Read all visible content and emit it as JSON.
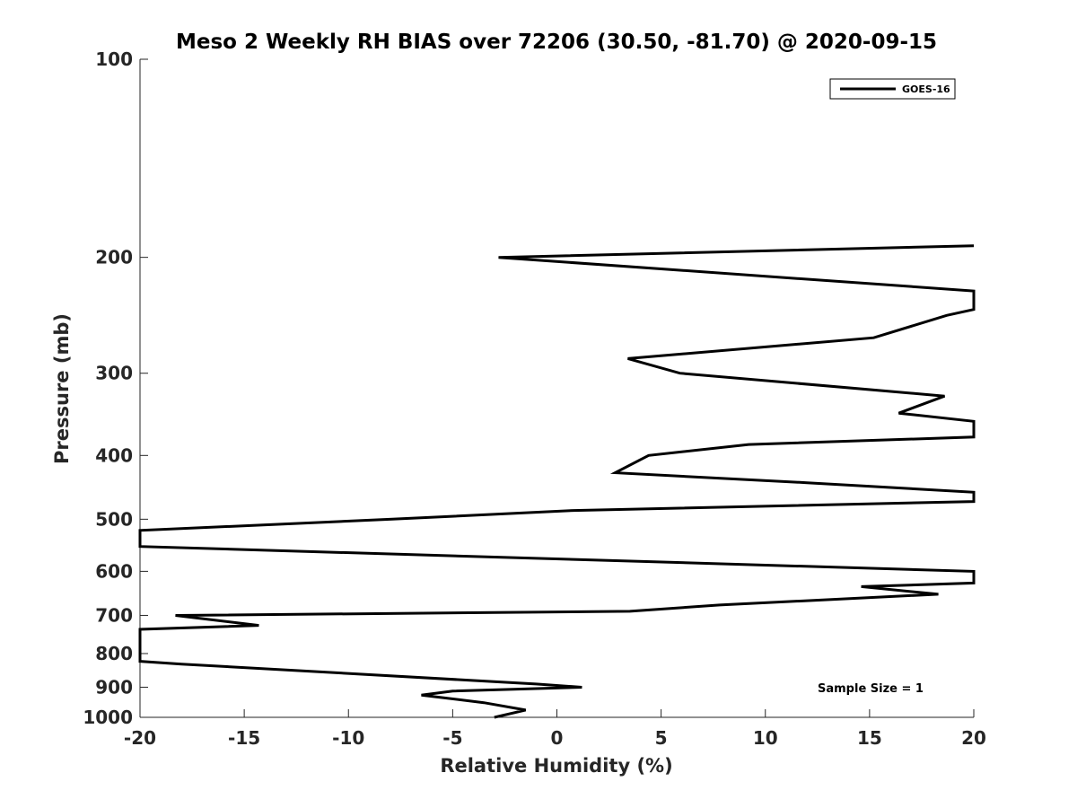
{
  "chart_data": {
    "type": "line",
    "title": "Meso 2 Weekly RH BIAS over 72206 (30.50, -81.70) @ 2020-09-15",
    "xlabel": "Relative Humidity (%)",
    "ylabel": "Pressure (mb)",
    "xlim": [
      -20,
      20
    ],
    "ylim": [
      100,
      1000
    ],
    "y_scale": "log",
    "y_reversed": true,
    "x_ticks": [
      "-20",
      "-15",
      "-10",
      "-5",
      "0",
      "5",
      "10",
      "15",
      "20"
    ],
    "y_ticks": [
      "100",
      "200",
      "300",
      "400",
      "500",
      "600",
      "700",
      "800",
      "900",
      "1000"
    ],
    "grid": false,
    "legend_position": "top-right",
    "annotation": "Sample Size = 1",
    "series": [
      {
        "name": "GOES-16",
        "color": "#000000",
        "points": [
          [
            -3,
            1000
          ],
          [
            -1.5,
            975
          ],
          [
            -3.5,
            950
          ],
          [
            -6.5,
            925
          ],
          [
            -5,
            912
          ],
          [
            1.2,
            900
          ],
          [
            -1,
            890
          ],
          [
            -18,
            830
          ],
          [
            -20,
            822
          ],
          [
            -20,
            826
          ],
          [
            -20,
            800
          ],
          [
            -20,
            780
          ],
          [
            -20,
            760
          ],
          [
            -20,
            735
          ],
          [
            -14.3,
            725
          ],
          [
            -18.3,
            700
          ],
          [
            3.5,
            690
          ],
          [
            7.8,
            675
          ],
          [
            18.3,
            650
          ],
          [
            14.6,
            633
          ],
          [
            20,
            625
          ],
          [
            20,
            600
          ],
          [
            -20,
            550
          ],
          [
            -20,
            520
          ],
          [
            -7.9,
            500
          ],
          [
            0.8,
            485
          ],
          [
            20,
            470
          ],
          [
            20,
            455
          ],
          [
            12,
            440
          ],
          [
            2.8,
            425
          ],
          [
            4.4,
            400
          ],
          [
            9.2,
            385
          ],
          [
            20,
            375
          ],
          [
            20,
            355
          ],
          [
            16.4,
            345
          ],
          [
            18.6,
            325
          ],
          [
            5.9,
            300
          ],
          [
            3.4,
            285
          ],
          [
            15.2,
            265
          ],
          [
            18.7,
            245
          ],
          [
            20,
            240
          ],
          [
            20,
            225
          ],
          [
            -2.8,
            200
          ],
          [
            20,
            192
          ]
        ]
      }
    ]
  }
}
